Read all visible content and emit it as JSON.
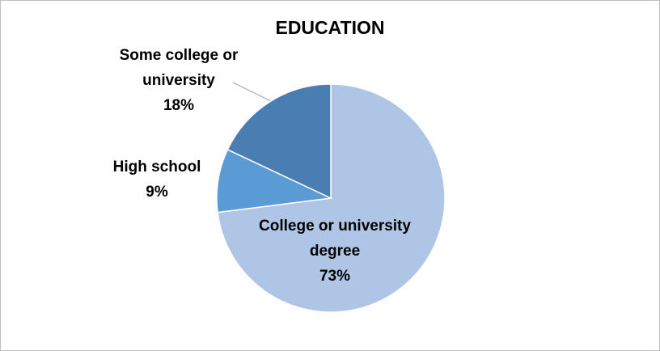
{
  "chart_data": {
    "type": "pie",
    "title": "EDUCATION",
    "categories": [
      "College or university degree",
      "High school",
      "Some college or university"
    ],
    "values": [
      73,
      9,
      18
    ],
    "value_labels": [
      "73%",
      "9%",
      "18%"
    ],
    "colors": [
      "#aec5e6",
      "#5b9bd5",
      "#4a7db1"
    ]
  }
}
